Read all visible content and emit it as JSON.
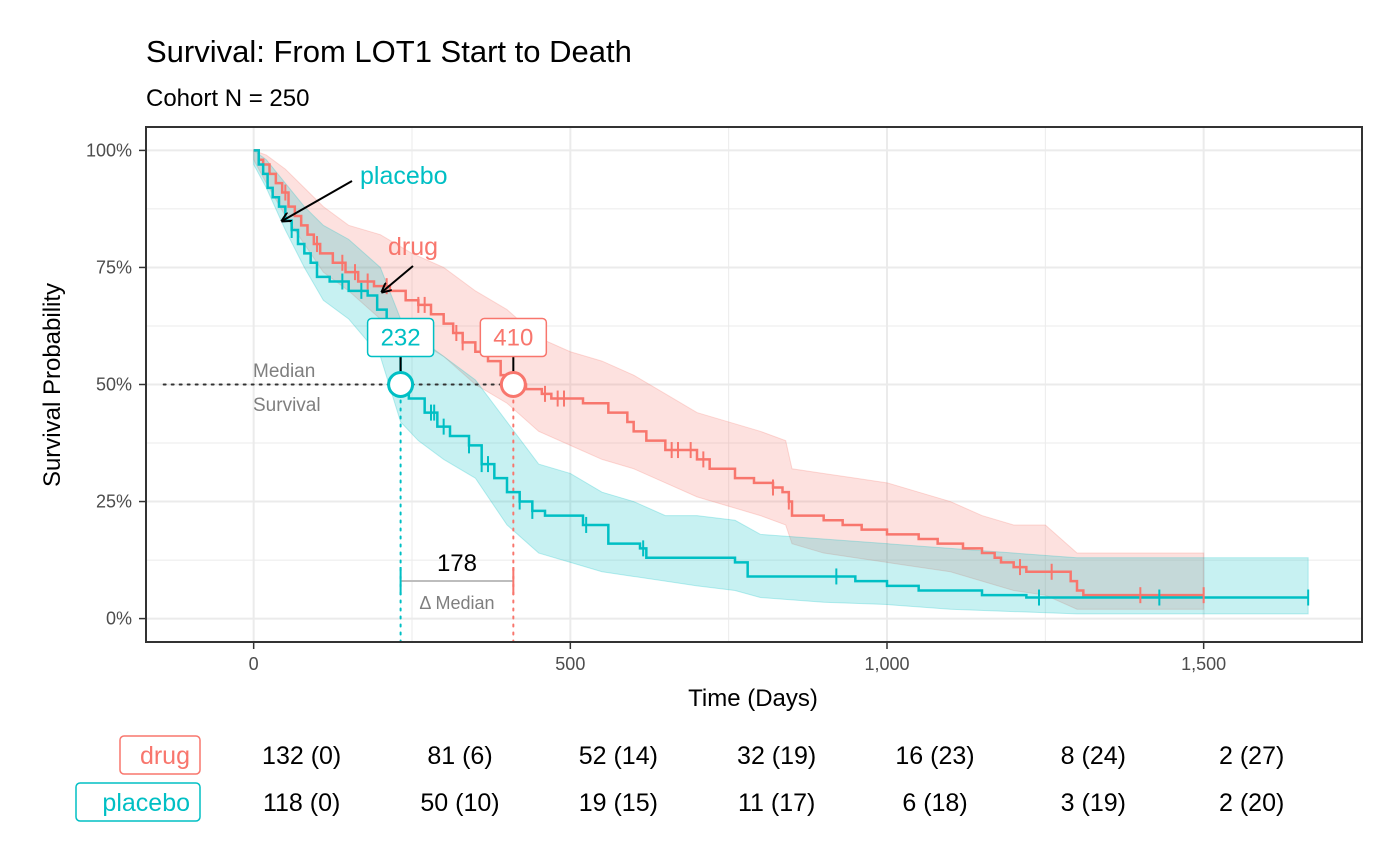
{
  "title": "Survival: From LOT1 Start to Death",
  "subtitle": "Cohort N = 250",
  "colors": {
    "drug": "#F8766D",
    "placebo": "#00BFC4",
    "grid": "#ebebeb",
    "tick_text": "#4d4d4d",
    "annotation_grey": "#7f7f7f"
  },
  "chart_data": {
    "type": "line",
    "xlabel": "Time (Days)",
    "ylabel": "Survival Probability",
    "xlim": [
      -170,
      1750
    ],
    "ylim": [
      -0.05,
      1.05
    ],
    "x_ticks": [
      0,
      500,
      1000,
      1500
    ],
    "x_tick_labels": [
      "0",
      "500",
      "1,000",
      "1,500"
    ],
    "y_ticks": [
      0,
      0.25,
      0.5,
      0.75,
      1.0
    ],
    "y_tick_labels": [
      "0%",
      "25%",
      "50%",
      "75%",
      "100%"
    ],
    "grid": true,
    "legend": "none",
    "series": [
      {
        "name": "drug",
        "color": "#F8766D",
        "label": "drug",
        "steps": [
          [
            0,
            1.0
          ],
          [
            8,
            0.98
          ],
          [
            15,
            0.97
          ],
          [
            25,
            0.95
          ],
          [
            35,
            0.93
          ],
          [
            45,
            0.91
          ],
          [
            55,
            0.88
          ],
          [
            65,
            0.86
          ],
          [
            75,
            0.84
          ],
          [
            85,
            0.82
          ],
          [
            95,
            0.8
          ],
          [
            105,
            0.78
          ],
          [
            125,
            0.76
          ],
          [
            145,
            0.74
          ],
          [
            165,
            0.72
          ],
          [
            190,
            0.71
          ],
          [
            215,
            0.7
          ],
          [
            240,
            0.68
          ],
          [
            260,
            0.67
          ],
          [
            280,
            0.65
          ],
          [
            300,
            0.63
          ],
          [
            315,
            0.61
          ],
          [
            330,
            0.59
          ],
          [
            350,
            0.57
          ],
          [
            370,
            0.55
          ],
          [
            390,
            0.52
          ],
          [
            410,
            0.5
          ],
          [
            430,
            0.49
          ],
          [
            455,
            0.48
          ],
          [
            470,
            0.47
          ],
          [
            520,
            0.46
          ],
          [
            560,
            0.44
          ],
          [
            590,
            0.42
          ],
          [
            600,
            0.4
          ],
          [
            620,
            0.38
          ],
          [
            650,
            0.36
          ],
          [
            700,
            0.34
          ],
          [
            720,
            0.32
          ],
          [
            760,
            0.3
          ],
          [
            790,
            0.29
          ],
          [
            820,
            0.28
          ],
          [
            835,
            0.27
          ],
          [
            845,
            0.25
          ],
          [
            850,
            0.22
          ],
          [
            900,
            0.21
          ],
          [
            930,
            0.2
          ],
          [
            960,
            0.19
          ],
          [
            1000,
            0.18
          ],
          [
            1050,
            0.17
          ],
          [
            1080,
            0.16
          ],
          [
            1120,
            0.15
          ],
          [
            1150,
            0.14
          ],
          [
            1170,
            0.13
          ],
          [
            1180,
            0.12
          ],
          [
            1200,
            0.11
          ],
          [
            1220,
            0.1
          ],
          [
            1290,
            0.08
          ],
          [
            1300,
            0.06
          ],
          [
            1310,
            0.05
          ],
          [
            1500,
            0.05
          ]
        ],
        "band_upper": [
          [
            0,
            1.0
          ],
          [
            20,
            0.99
          ],
          [
            50,
            0.96
          ],
          [
            80,
            0.92
          ],
          [
            110,
            0.88
          ],
          [
            150,
            0.84
          ],
          [
            200,
            0.82
          ],
          [
            250,
            0.78
          ],
          [
            300,
            0.75
          ],
          [
            350,
            0.7
          ],
          [
            400,
            0.66
          ],
          [
            450,
            0.6
          ],
          [
            500,
            0.57
          ],
          [
            550,
            0.55
          ],
          [
            600,
            0.52
          ],
          [
            650,
            0.48
          ],
          [
            700,
            0.44
          ],
          [
            750,
            0.42
          ],
          [
            800,
            0.4
          ],
          [
            840,
            0.38
          ],
          [
            850,
            0.32
          ],
          [
            900,
            0.31
          ],
          [
            950,
            0.3
          ],
          [
            1000,
            0.29
          ],
          [
            1050,
            0.27
          ],
          [
            1100,
            0.25
          ],
          [
            1150,
            0.22
          ],
          [
            1200,
            0.2
          ],
          [
            1250,
            0.2
          ],
          [
            1300,
            0.14
          ],
          [
            1500,
            0.14
          ]
        ],
        "band_lower": [
          [
            0,
            0.98
          ],
          [
            20,
            0.93
          ],
          [
            50,
            0.86
          ],
          [
            80,
            0.8
          ],
          [
            110,
            0.74
          ],
          [
            150,
            0.7
          ],
          [
            200,
            0.64
          ],
          [
            250,
            0.6
          ],
          [
            300,
            0.56
          ],
          [
            350,
            0.5
          ],
          [
            400,
            0.46
          ],
          [
            450,
            0.4
          ],
          [
            500,
            0.37
          ],
          [
            550,
            0.34
          ],
          [
            600,
            0.32
          ],
          [
            650,
            0.29
          ],
          [
            700,
            0.26
          ],
          [
            750,
            0.24
          ],
          [
            800,
            0.22
          ],
          [
            840,
            0.2
          ],
          [
            850,
            0.16
          ],
          [
            900,
            0.14
          ],
          [
            950,
            0.13
          ],
          [
            1000,
            0.12
          ],
          [
            1050,
            0.11
          ],
          [
            1100,
            0.1
          ],
          [
            1150,
            0.08
          ],
          [
            1200,
            0.06
          ],
          [
            1250,
            0.05
          ],
          [
            1300,
            0.02
          ],
          [
            1500,
            0.02
          ]
        ],
        "censor_x": [
          50,
          100,
          140,
          160,
          180,
          210,
          260,
          270,
          320,
          330,
          460,
          480,
          490,
          660,
          670,
          690,
          710,
          820,
          845,
          1210,
          1260,
          1400,
          1500
        ],
        "median": 410
      },
      {
        "name": "placebo",
        "color": "#00BFC4",
        "label": "placebo",
        "steps": [
          [
            0,
            1.0
          ],
          [
            8,
            0.97
          ],
          [
            15,
            0.95
          ],
          [
            22,
            0.92
          ],
          [
            30,
            0.9
          ],
          [
            40,
            0.88
          ],
          [
            50,
            0.85
          ],
          [
            60,
            0.83
          ],
          [
            70,
            0.8
          ],
          [
            80,
            0.78
          ],
          [
            90,
            0.76
          ],
          [
            100,
            0.73
          ],
          [
            120,
            0.72
          ],
          [
            150,
            0.7
          ],
          [
            180,
            0.69
          ],
          [
            195,
            0.66
          ],
          [
            210,
            0.62
          ],
          [
            220,
            0.58
          ],
          [
            232,
            0.5
          ],
          [
            245,
            0.47
          ],
          [
            270,
            0.44
          ],
          [
            290,
            0.41
          ],
          [
            310,
            0.39
          ],
          [
            340,
            0.37
          ],
          [
            360,
            0.33
          ],
          [
            380,
            0.3
          ],
          [
            400,
            0.27
          ],
          [
            420,
            0.25
          ],
          [
            440,
            0.23
          ],
          [
            460,
            0.22
          ],
          [
            520,
            0.2
          ],
          [
            560,
            0.16
          ],
          [
            610,
            0.15
          ],
          [
            620,
            0.13
          ],
          [
            760,
            0.12
          ],
          [
            780,
            0.09
          ],
          [
            950,
            0.08
          ],
          [
            1000,
            0.07
          ],
          [
            1050,
            0.06
          ],
          [
            1150,
            0.05
          ],
          [
            1220,
            0.045
          ],
          [
            1665,
            0.045
          ]
        ],
        "band_upper": [
          [
            0,
            1.0
          ],
          [
            20,
            0.98
          ],
          [
            50,
            0.93
          ],
          [
            80,
            0.88
          ],
          [
            110,
            0.84
          ],
          [
            150,
            0.81
          ],
          [
            200,
            0.75
          ],
          [
            232,
            0.64
          ],
          [
            260,
            0.6
          ],
          [
            300,
            0.56
          ],
          [
            350,
            0.51
          ],
          [
            400,
            0.42
          ],
          [
            450,
            0.33
          ],
          [
            500,
            0.31
          ],
          [
            550,
            0.27
          ],
          [
            600,
            0.25
          ],
          [
            650,
            0.22
          ],
          [
            700,
            0.22
          ],
          [
            760,
            0.21
          ],
          [
            800,
            0.18
          ],
          [
            900,
            0.17
          ],
          [
            1000,
            0.16
          ],
          [
            1100,
            0.15
          ],
          [
            1200,
            0.14
          ],
          [
            1300,
            0.13
          ],
          [
            1665,
            0.13
          ]
        ],
        "band_lower": [
          [
            0,
            0.97
          ],
          [
            20,
            0.92
          ],
          [
            50,
            0.83
          ],
          [
            80,
            0.75
          ],
          [
            110,
            0.68
          ],
          [
            150,
            0.64
          ],
          [
            200,
            0.56
          ],
          [
            232,
            0.42
          ],
          [
            260,
            0.38
          ],
          [
            300,
            0.34
          ],
          [
            350,
            0.3
          ],
          [
            400,
            0.2
          ],
          [
            450,
            0.14
          ],
          [
            500,
            0.12
          ],
          [
            550,
            0.1
          ],
          [
            600,
            0.09
          ],
          [
            650,
            0.08
          ],
          [
            700,
            0.07
          ],
          [
            760,
            0.06
          ],
          [
            800,
            0.045
          ],
          [
            900,
            0.035
          ],
          [
            1000,
            0.03
          ],
          [
            1100,
            0.02
          ],
          [
            1200,
            0.015
          ],
          [
            1300,
            0.01
          ],
          [
            1665,
            0.01
          ]
        ],
        "censor_x": [
          60,
          140,
          170,
          210,
          240,
          280,
          285,
          300,
          340,
          360,
          370,
          420,
          440,
          525,
          615,
          920,
          1240,
          1430,
          1665
        ],
        "median": 232
      }
    ],
    "median_line_label": "Median\nSurvival",
    "median_labels": {
      "drug": "410",
      "placebo": "232"
    },
    "delta_median": {
      "value": "178",
      "label": "Δ Median"
    },
    "risk_table": {
      "rows": [
        {
          "group": "drug",
          "values": [
            "132 (0)",
            "81 (6)",
            "52 (14)",
            "32 (19)",
            "16 (23)",
            "8 (24)",
            "2 (27)"
          ]
        },
        {
          "group": "placebo",
          "values": [
            "118 (0)",
            "50 (10)",
            "19 (15)",
            "11 (17)",
            "6 (18)",
            "3 (19)",
            "2 (20)"
          ]
        }
      ]
    }
  }
}
